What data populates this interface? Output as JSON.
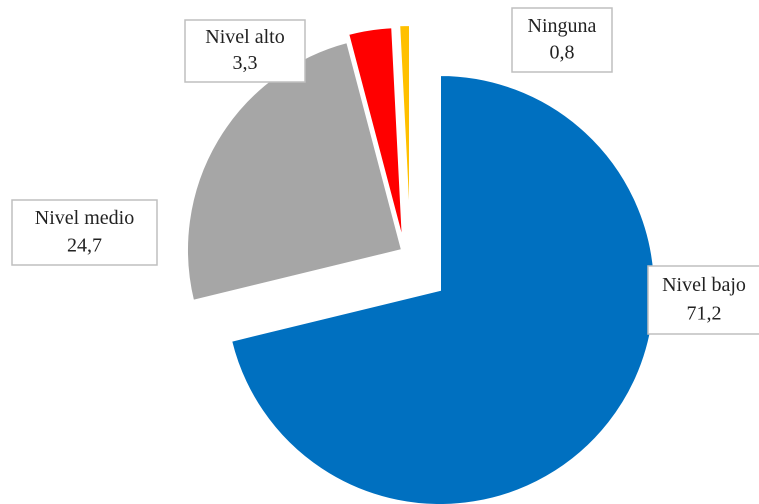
{
  "chart_data": {
    "type": "pie",
    "categories": [
      "Nivel bajo",
      "Nivel medio",
      "Nivel alto",
      "Ninguna"
    ],
    "values": [
      71.2,
      24.7,
      3.3,
      0.8
    ],
    "value_labels": [
      "71,2",
      "24,7",
      "3,3",
      "0,8"
    ],
    "colors": [
      "#0070c0",
      "#a6a6a6",
      "#ff0000",
      "#ffc000"
    ]
  }
}
